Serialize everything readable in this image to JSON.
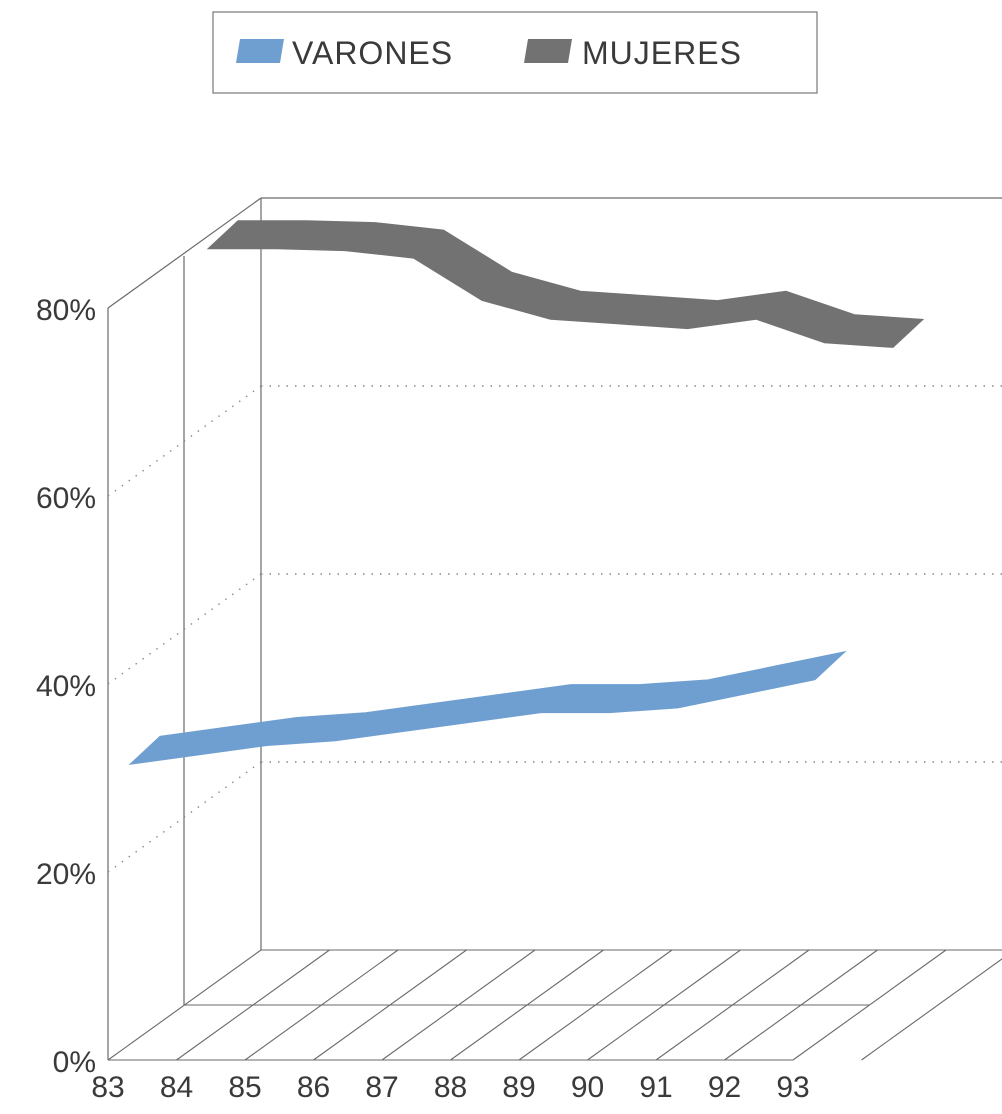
{
  "chart_data": {
    "type": "line",
    "categories": [
      "83",
      "84",
      "85",
      "86",
      "87",
      "88",
      "89",
      "90",
      "91",
      "92",
      "93"
    ],
    "series": [
      {
        "name": "VARONES",
        "color": "#6f9fd0",
        "values": [
          30.5,
          31.5,
          32.5,
          33,
          34,
          35,
          36,
          36,
          36.5,
          38,
          39.5
        ]
      },
      {
        "name": "MUJERES",
        "color": "#727272",
        "values": [
          79.5,
          79.5,
          79.3,
          78.5,
          74,
          72,
          71.5,
          71,
          72,
          69.5,
          69
        ]
      }
    ],
    "yticks": [
      "0%",
      "20%",
      "40%",
      "60%",
      "80%"
    ],
    "ylim": [
      0,
      80
    ],
    "legend": "top",
    "grid": true,
    "style": "3d-ribbon"
  }
}
